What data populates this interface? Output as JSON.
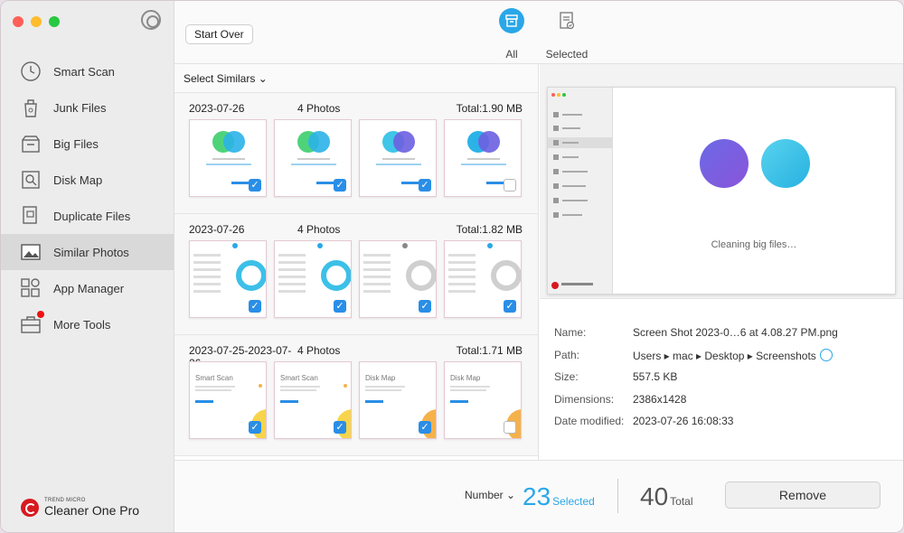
{
  "app": {
    "brand_small": "TREND MICRO",
    "brand_name": "Cleaner One Pro",
    "peek_text": "Screenshots"
  },
  "sidebar": {
    "items": [
      {
        "label": "Smart Scan",
        "icon": "clock-icon",
        "active": false
      },
      {
        "label": "Junk Files",
        "icon": "trash-can-icon",
        "active": false
      },
      {
        "label": "Big Files",
        "icon": "box-icon",
        "active": false
      },
      {
        "label": "Disk Map",
        "icon": "disk-map-icon",
        "active": false
      },
      {
        "label": "Duplicate Files",
        "icon": "duplicate-icon",
        "active": false
      },
      {
        "label": "Similar Photos",
        "icon": "photo-icon",
        "active": true
      },
      {
        "label": "App Manager",
        "icon": "app-grid-icon",
        "active": false
      },
      {
        "label": "More Tools",
        "icon": "toolbox-icon",
        "active": false,
        "badge": true
      }
    ]
  },
  "toolbar": {
    "start_over": "Start Over",
    "tab_all": "All",
    "tab_selected": "Selected"
  },
  "list": {
    "select_similars": "Select Similars ⌄",
    "groups": [
      {
        "date": "2023-07-26",
        "count": "4 Photos",
        "total": "Total:1.90 MB",
        "checked": [
          true,
          true,
          true,
          false
        ]
      },
      {
        "date": "2023-07-26",
        "count": "4 Photos",
        "total": "Total:1.82 MB",
        "checked": [
          true,
          true,
          true,
          true
        ]
      },
      {
        "date": "2023-07-25-2023-07-26",
        "count": "4 Photos",
        "total": "Total:1.71 MB",
        "checked": [
          true,
          true,
          true,
          false
        ]
      }
    ]
  },
  "preview": {
    "caption": "Cleaning big files…",
    "colors": {
      "accent": "#2aa7e8",
      "purple": "#6b6ae7",
      "cyan": "#27b1e0"
    }
  },
  "info": {
    "name_label": "Name:",
    "name": "Screen Shot 2023-0…6 at 4.08.27 PM.png",
    "path_label": "Path:",
    "path": "Users ▸ mac ▸ Desktop ▸ Screenshots",
    "size_label": "Size:",
    "size": "557.5 KB",
    "dim_label": "Dimensions:",
    "dim": "2386x1428",
    "date_label": "Date modified:",
    "date": "2023-07-26 16:08:33"
  },
  "footer": {
    "sort": "Number ⌄",
    "selected_count": "23",
    "selected_label": "Selected",
    "total_count": "40",
    "total_label": "Total",
    "remove": "Remove"
  }
}
